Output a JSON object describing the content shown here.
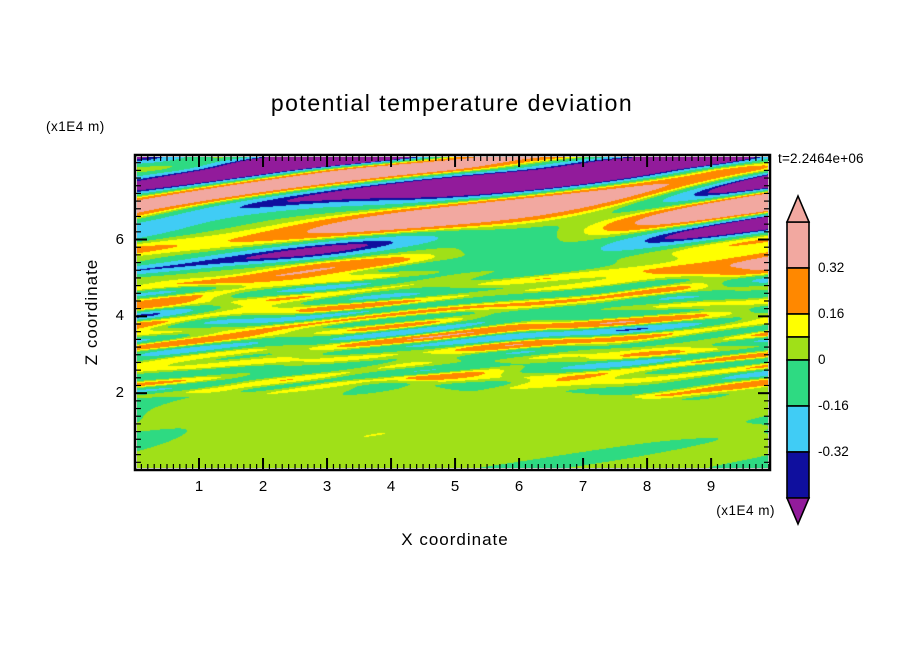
{
  "title": "potential temperature deviation",
  "timestamp": "t=2.2464e+06",
  "axes": {
    "x_label": "X coordinate",
    "y_label": "Z coordinate",
    "x_unit": "(x1E4 m)",
    "y_unit": "(x1E4 m)"
  },
  "chart_data": {
    "type": "heatmap",
    "title": "potential temperature deviation",
    "xlabel": "X coordinate",
    "ylabel": "Z coordinate",
    "x_unit": "(x1E4 m)",
    "y_unit": "(x1E4 m)",
    "time_annotation": "t=2.2464e+06",
    "xlim": [
      0,
      9.92
    ],
    "ylim": [
      0,
      8.2
    ],
    "x_ticks": [
      1,
      2,
      3,
      4,
      5,
      6,
      7,
      8,
      9
    ],
    "y_ticks": [
      2,
      4,
      6
    ],
    "x_minor_step": 0.1,
    "y_minor_step": 0.2,
    "grid": false,
    "legend_position": "right",
    "colorbar": {
      "labels": [
        "0.32",
        "0.16",
        "0",
        "-0.16",
        "-0.32"
      ],
      "levels": [
        0.32,
        0.16,
        0.08,
        0,
        -0.16,
        -0.32
      ],
      "segments": [
        {
          "color": "#f2a8a0",
          "value_range": "above 0.32"
        },
        {
          "color": "#ff8800",
          "value_range": "0.16 to 0.32"
        },
        {
          "color": "#ffff00",
          "value_range": "0.08 to 0.16"
        },
        {
          "color": "#a0e018",
          "value_range": "0 to 0.08"
        },
        {
          "color": "#2eda82",
          "value_range": "-0.16 to 0"
        },
        {
          "color": "#40ccf5",
          "value_range": "-0.32 to -0.16"
        },
        {
          "color": "#0f0f9e",
          "value_range": "-0.4 to -0.32"
        }
      ],
      "arrow_over_color": "#f2a8a0",
      "arrow_under_color": "#921b9b"
    },
    "field_character": "horizontally layered wave field: strong alternating salmon/purple bands aloft with rainbow fringes, fine green/cyan/yellow/orange turbulent streaks at mid-levels, weak smooth yellow-green and green anomalies below z=2"
  }
}
